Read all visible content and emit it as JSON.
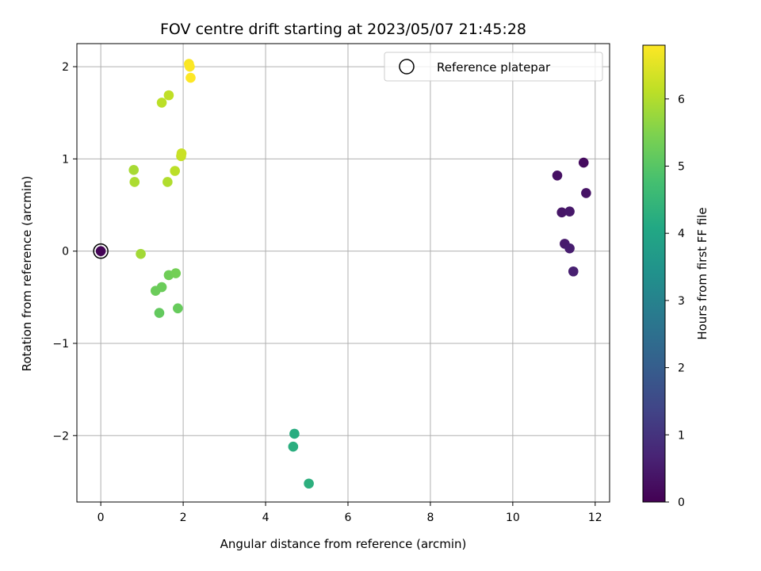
{
  "chart_data": {
    "type": "scatter",
    "title": "FOV centre drift starting at 2023/05/07 21:45:28",
    "xlabel": "Angular distance from reference (arcmin)",
    "ylabel": "Rotation from reference (arcmin)",
    "xlim": [
      -0.58,
      12.35
    ],
    "ylim": [
      -2.72,
      2.25
    ],
    "x_ticks": [
      0,
      2,
      4,
      6,
      8,
      10,
      12
    ],
    "y_ticks": [
      -2,
      -1,
      0,
      1,
      2
    ],
    "grid": true,
    "colormap": "viridis",
    "colorbar": {
      "label": "Hours from first FF file",
      "range": [
        0,
        6.8
      ],
      "ticks": [
        0,
        1,
        2,
        3,
        4,
        5,
        6
      ]
    },
    "legend": {
      "location": "top-right",
      "entries": [
        {
          "label": "Reference platepar",
          "marker": "open-circle",
          "color": "#000000"
        }
      ]
    },
    "reference_point": {
      "x": 0,
      "y": 0
    },
    "points": [
      {
        "x": 0.0,
        "y": 0.0,
        "hours": 0.05
      },
      {
        "x": 11.72,
        "y": 0.96,
        "hours": 0.2
      },
      {
        "x": 11.08,
        "y": 0.82,
        "hours": 0.3
      },
      {
        "x": 11.78,
        "y": 0.63,
        "hours": 0.35
      },
      {
        "x": 11.19,
        "y": 0.42,
        "hours": 0.4
      },
      {
        "x": 11.38,
        "y": 0.43,
        "hours": 0.45
      },
      {
        "x": 11.26,
        "y": 0.08,
        "hours": 0.5
      },
      {
        "x": 11.38,
        "y": 0.03,
        "hours": 0.55
      },
      {
        "x": 11.47,
        "y": -0.22,
        "hours": 0.6
      },
      {
        "x": 4.7,
        "y": -1.98,
        "hours": 4.2
      },
      {
        "x": 4.67,
        "y": -2.12,
        "hours": 4.25
      },
      {
        "x": 5.05,
        "y": -2.52,
        "hours": 4.3
      },
      {
        "x": 1.42,
        "y": -0.67,
        "hours": 5.15
      },
      {
        "x": 1.87,
        "y": -0.62,
        "hours": 5.2
      },
      {
        "x": 1.33,
        "y": -0.43,
        "hours": 5.25
      },
      {
        "x": 1.48,
        "y": -0.39,
        "hours": 5.25
      },
      {
        "x": 1.65,
        "y": -0.26,
        "hours": 5.3
      },
      {
        "x": 1.82,
        "y": -0.24,
        "hours": 5.35
      },
      {
        "x": 0.97,
        "y": -0.03,
        "hours": 5.85
      },
      {
        "x": 0.8,
        "y": 0.88,
        "hours": 5.9
      },
      {
        "x": 0.82,
        "y": 0.75,
        "hours": 5.95
      },
      {
        "x": 1.62,
        "y": 0.75,
        "hours": 6.0
      },
      {
        "x": 1.8,
        "y": 0.87,
        "hours": 6.1
      },
      {
        "x": 1.95,
        "y": 1.03,
        "hours": 6.2
      },
      {
        "x": 1.96,
        "y": 1.06,
        "hours": 6.25
      },
      {
        "x": 1.48,
        "y": 1.61,
        "hours": 6.1
      },
      {
        "x": 1.65,
        "y": 1.69,
        "hours": 6.15
      },
      {
        "x": 2.14,
        "y": 2.03,
        "hours": 6.75
      },
      {
        "x": 2.16,
        "y": 2.0,
        "hours": 6.78
      },
      {
        "x": 2.18,
        "y": 1.88,
        "hours": 6.8
      }
    ]
  }
}
